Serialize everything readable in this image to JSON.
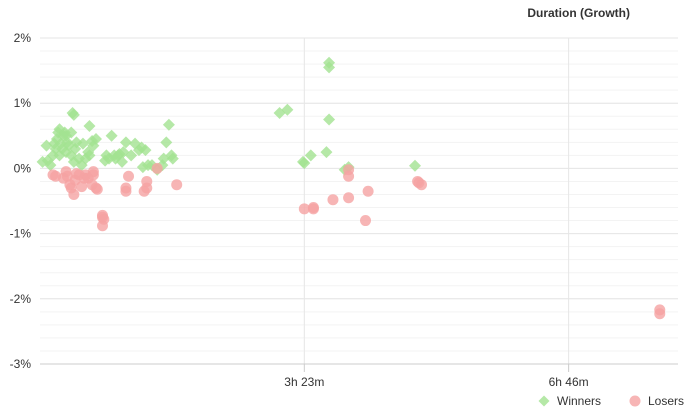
{
  "chart_data": {
    "type": "scatter",
    "title": "Duration (Growth)",
    "xlabel": "",
    "ylabel": "",
    "x_unit": "minutes",
    "xlim": [
      0,
      490
    ],
    "ylim": [
      -3,
      2
    ],
    "x_ticks": [
      {
        "value": 203,
        "label": "3h 23m"
      },
      {
        "value": 406,
        "label": "6h 46m"
      }
    ],
    "y_ticks": [
      {
        "value": 2,
        "label": "2%"
      },
      {
        "value": 1,
        "label": "1%"
      },
      {
        "value": 0,
        "label": "0%"
      },
      {
        "value": -1,
        "label": "-1%"
      },
      {
        "value": -2,
        "label": "-2%"
      },
      {
        "value": -3,
        "label": "-3%"
      }
    ],
    "grid": true,
    "legend_position": "bottom-right",
    "series": [
      {
        "name": "Winners",
        "color": "#a3e291",
        "marker": "diamond",
        "points": [
          [
            2,
            0.1
          ],
          [
            5,
            0.35
          ],
          [
            6,
            0.12
          ],
          [
            8,
            0.05
          ],
          [
            10,
            0.2
          ],
          [
            11,
            0.38
          ],
          [
            12,
            0.3
          ],
          [
            13,
            0.45
          ],
          [
            14,
            0.55
          ],
          [
            15,
            0.6
          ],
          [
            15,
            0.2
          ],
          [
            16,
            0.38
          ],
          [
            17,
            0.3
          ],
          [
            18,
            0.5
          ],
          [
            19,
            0.55
          ],
          [
            20,
            0.5
          ],
          [
            20,
            0.25
          ],
          [
            21,
            0.4
          ],
          [
            22,
            0.35
          ],
          [
            24,
            0.2
          ],
          [
            24,
            0.55
          ],
          [
            25,
            0.85
          ],
          [
            26,
            0.82
          ],
          [
            26,
            0.1
          ],
          [
            27,
            0.3
          ],
          [
            28,
            0.4
          ],
          [
            30,
            0.15
          ],
          [
            32,
            0.05
          ],
          [
            33,
            0.38
          ],
          [
            35,
            0.15
          ],
          [
            37,
            0.25
          ],
          [
            38,
            0.2
          ],
          [
            38,
            0.65
          ],
          [
            40,
            0.42
          ],
          [
            41,
            0.35
          ],
          [
            43,
            0.45
          ],
          [
            50,
            0.12
          ],
          [
            51,
            0.2
          ],
          [
            53,
            0.15
          ],
          [
            55,
            0.5
          ],
          [
            57,
            0.2
          ],
          [
            58,
            0.15
          ],
          [
            60,
            0.2
          ],
          [
            61,
            0.22
          ],
          [
            63,
            0.1
          ],
          [
            64,
            0.25
          ],
          [
            66,
            0.4
          ],
          [
            70,
            0.2
          ],
          [
            73,
            0.38
          ],
          [
            76,
            0.28
          ],
          [
            78,
            0.32
          ],
          [
            79,
            0.02
          ],
          [
            81,
            0.28
          ],
          [
            83,
            0.05
          ],
          [
            86,
            0.05
          ],
          [
            90,
            -0.02
          ],
          [
            94,
            0.05
          ],
          [
            95,
            0.15
          ],
          [
            97,
            0.4
          ],
          [
            99,
            0.67
          ],
          [
            101,
            0.2
          ],
          [
            102,
            0.15
          ],
          [
            184,
            0.85
          ],
          [
            190,
            0.9
          ],
          [
            202,
            0.1
          ],
          [
            203,
            0.08
          ],
          [
            208,
            0.2
          ],
          [
            220,
            0.25
          ],
          [
            222,
            0.75
          ],
          [
            222,
            1.55
          ],
          [
            222,
            1.62
          ],
          [
            234,
            -0.02
          ],
          [
            237,
            0.02
          ],
          [
            288,
            0.04
          ]
        ]
      },
      {
        "name": "Losers",
        "color": "#f5a3a3",
        "marker": "circle",
        "points": [
          [
            10,
            -0.1
          ],
          [
            12,
            -0.12
          ],
          [
            18,
            -0.15
          ],
          [
            20,
            -0.05
          ],
          [
            21,
            -0.12
          ],
          [
            23,
            -0.25
          ],
          [
            24,
            -0.3
          ],
          [
            26,
            -0.4
          ],
          [
            27,
            -0.18
          ],
          [
            28,
            -0.08
          ],
          [
            30,
            -0.1
          ],
          [
            32,
            -0.28
          ],
          [
            34,
            -0.15
          ],
          [
            35,
            -0.1
          ],
          [
            37,
            -0.15
          ],
          [
            40,
            -0.25
          ],
          [
            41,
            -0.05
          ],
          [
            41,
            -0.1
          ],
          [
            43,
            -0.3
          ],
          [
            44,
            -0.32
          ],
          [
            48,
            -0.72
          ],
          [
            48,
            -0.75
          ],
          [
            48,
            -0.88
          ],
          [
            49,
            -0.78
          ],
          [
            66,
            -0.3
          ],
          [
            66,
            -0.35
          ],
          [
            68,
            -0.12
          ],
          [
            80,
            -0.35
          ],
          [
            82,
            -0.3
          ],
          [
            82,
            -0.2
          ],
          [
            90,
            0.0
          ],
          [
            105,
            -0.25
          ],
          [
            203,
            -0.62
          ],
          [
            210,
            -0.62
          ],
          [
            210,
            -0.6
          ],
          [
            225,
            -0.48
          ],
          [
            237,
            -0.02
          ],
          [
            237,
            -0.12
          ],
          [
            237,
            -0.45
          ],
          [
            250,
            -0.8
          ],
          [
            252,
            -0.35
          ],
          [
            290,
            -0.2
          ],
          [
            291,
            -0.22
          ],
          [
            293,
            -0.25
          ],
          [
            476,
            -2.17
          ],
          [
            476,
            -2.23
          ]
        ]
      }
    ]
  }
}
